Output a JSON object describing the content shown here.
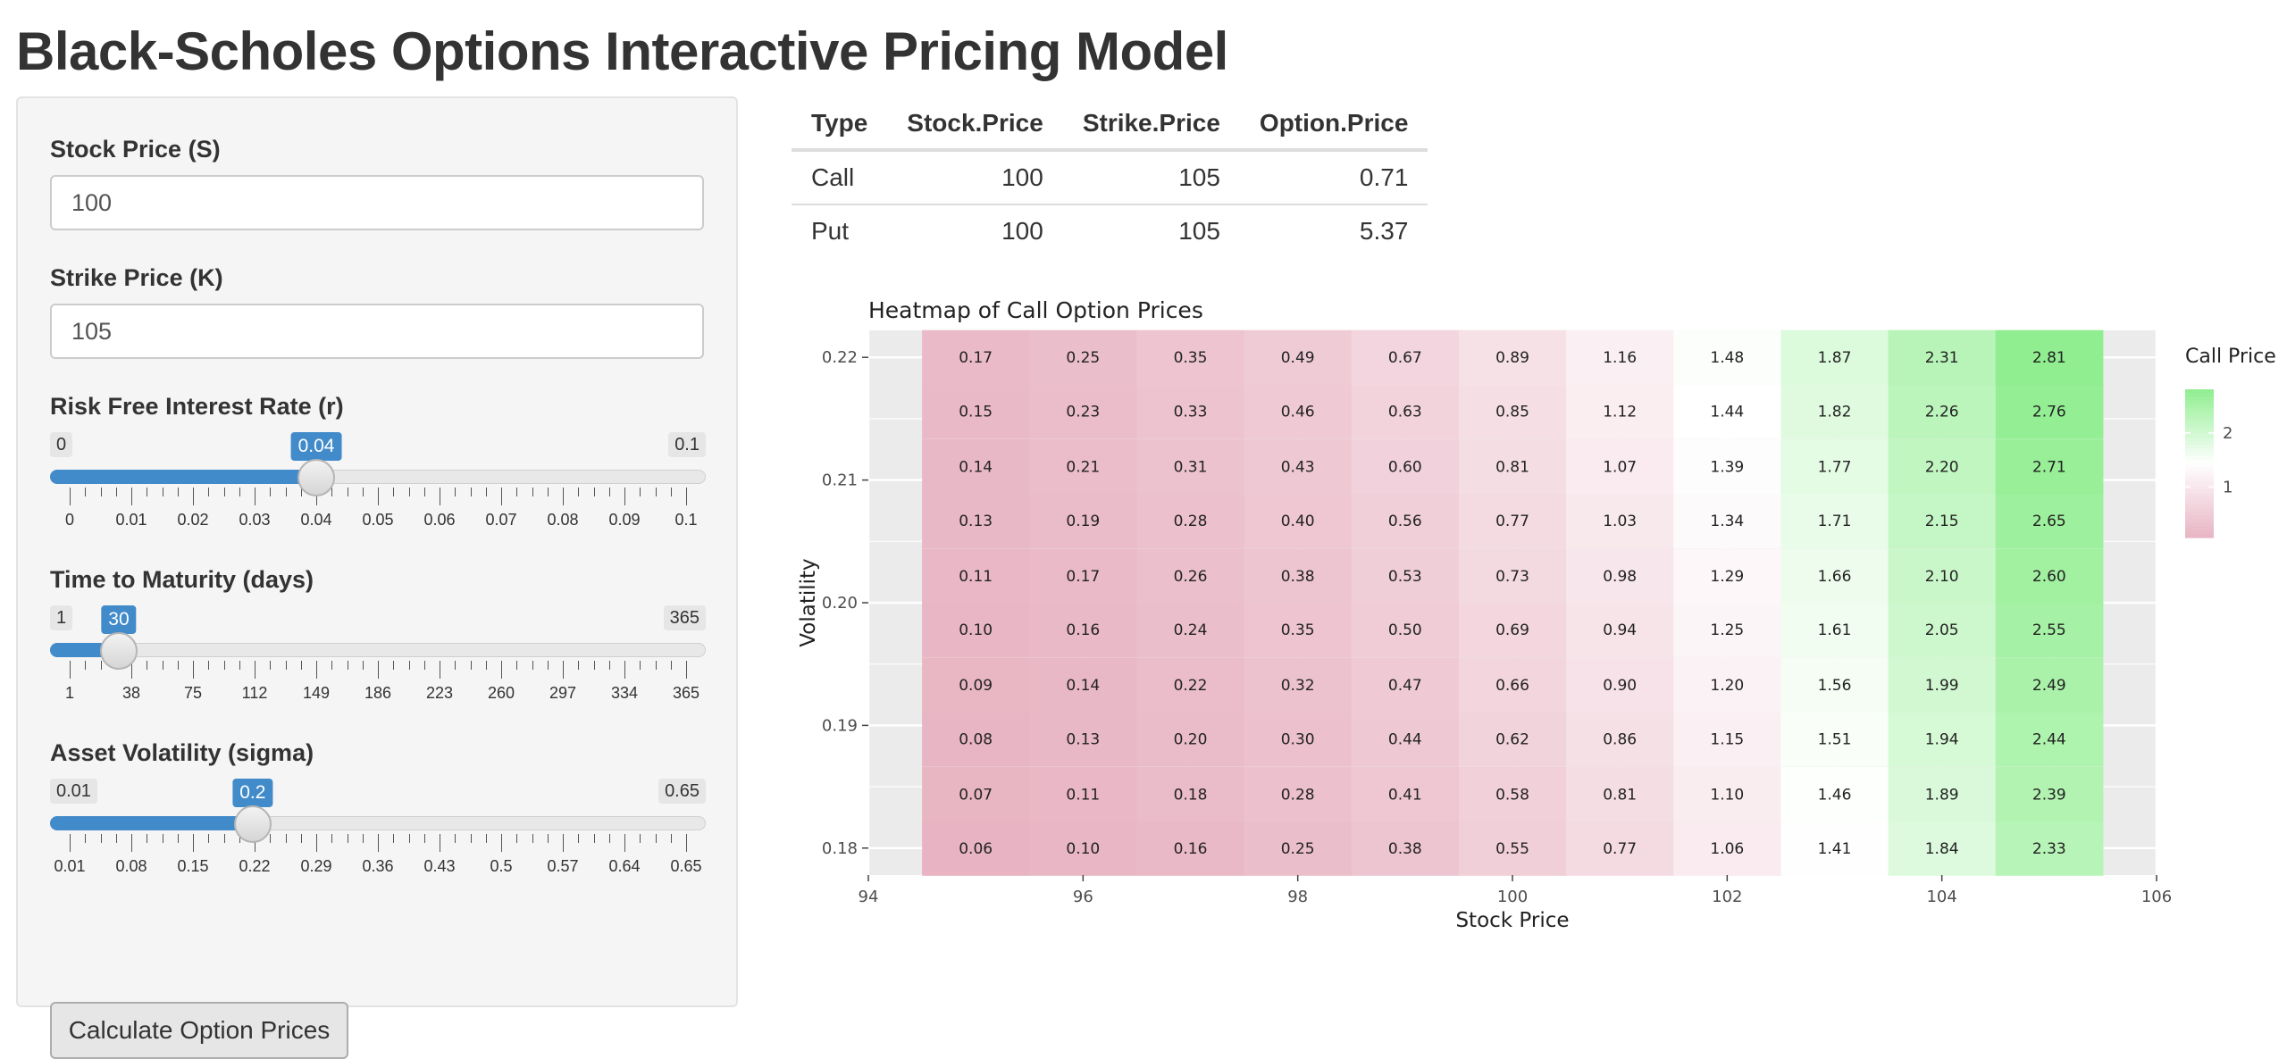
{
  "title": "Black-Scholes Options Interactive Pricing Model",
  "inputs": {
    "stock_price": {
      "label": "Stock Price (S)",
      "value": "100"
    },
    "strike_price": {
      "label": "Strike Price (K)",
      "value": "105"
    }
  },
  "sliders": {
    "rate": {
      "label": "Risk Free Interest Rate (r)",
      "min": "0",
      "max": "0.1",
      "value": "0.04",
      "fraction": 0.4,
      "ticks": [
        "0",
        "0.01",
        "0.02",
        "0.03",
        "0.04",
        "0.05",
        "0.06",
        "0.07",
        "0.08",
        "0.09",
        "0.1"
      ]
    },
    "time": {
      "label": "Time to Maturity (days)",
      "min": "1",
      "max": "365",
      "value": "30",
      "fraction": 0.0797,
      "ticks": [
        "1",
        "38",
        "75",
        "112",
        "149",
        "186",
        "223",
        "260",
        "297",
        "334",
        "365"
      ]
    },
    "sigma": {
      "label": "Asset Volatility (sigma)",
      "min": "0.01",
      "max": "0.65",
      "value": "0.2",
      "fraction": 0.2969,
      "ticks": [
        "0.01",
        "0.08",
        "0.15",
        "0.22",
        "0.29",
        "0.36",
        "0.43",
        "0.5",
        "0.57",
        "0.64",
        "0.65"
      ]
    }
  },
  "button": {
    "label": "Calculate Option Prices"
  },
  "table": {
    "headers": [
      "Type",
      "Stock.Price",
      "Strike.Price",
      "Option.Price"
    ],
    "rows": [
      {
        "type": "Call",
        "stock": "100",
        "strike": "105",
        "price": "0.71"
      },
      {
        "type": "Put",
        "stock": "100",
        "strike": "105",
        "price": "5.37"
      }
    ]
  },
  "chart_data": {
    "type": "heatmap",
    "title": "Heatmap of Call Option Prices",
    "xlabel": "Stock Price",
    "ylabel": "Volatility",
    "legend_title": "Call Price",
    "legend_ticks": [
      1,
      2
    ],
    "legend_position": "right",
    "xlim": [
      94,
      106
    ],
    "x_ticks": [
      94,
      96,
      98,
      100,
      102,
      104,
      106
    ],
    "y_ticks": [
      "0.18",
      "0.19",
      "0.20",
      "0.21",
      "0.22"
    ],
    "ylim": [
      0.1778,
      0.2222
    ],
    "x": [
      95,
      96,
      97,
      98,
      99,
      100,
      101,
      102,
      103,
      104,
      105
    ],
    "y": [
      0.18,
      0.1844,
      0.1889,
      0.1933,
      0.1978,
      0.2022,
      0.2067,
      0.2111,
      0.2156,
      0.22
    ],
    "values": [
      [
        "0.06",
        "0.10",
        "0.16",
        "0.25",
        "0.38",
        "0.55",
        "0.77",
        "1.06",
        "1.41",
        "1.84",
        "2.33"
      ],
      [
        "0.07",
        "0.11",
        "0.18",
        "0.28",
        "0.41",
        "0.58",
        "0.81",
        "1.10",
        "1.46",
        "1.89",
        "2.39"
      ],
      [
        "0.08",
        "0.13",
        "0.20",
        "0.30",
        "0.44",
        "0.62",
        "0.86",
        "1.15",
        "1.51",
        "1.94",
        "2.44"
      ],
      [
        "0.09",
        "0.14",
        "0.22",
        "0.32",
        "0.47",
        "0.66",
        "0.90",
        "1.20",
        "1.56",
        "1.99",
        "2.49"
      ],
      [
        "0.10",
        "0.16",
        "0.24",
        "0.35",
        "0.50",
        "0.69",
        "0.94",
        "1.25",
        "1.61",
        "2.05",
        "2.55"
      ],
      [
        "0.11",
        "0.17",
        "0.26",
        "0.38",
        "0.53",
        "0.73",
        "0.98",
        "1.29",
        "1.66",
        "2.10",
        "2.60"
      ],
      [
        "0.13",
        "0.19",
        "0.28",
        "0.40",
        "0.56",
        "0.77",
        "1.03",
        "1.34",
        "1.71",
        "2.15",
        "2.65"
      ],
      [
        "0.14",
        "0.21",
        "0.31",
        "0.43",
        "0.60",
        "0.81",
        "1.07",
        "1.39",
        "1.77",
        "2.20",
        "2.71"
      ],
      [
        "0.15",
        "0.23",
        "0.33",
        "0.46",
        "0.63",
        "0.85",
        "1.12",
        "1.44",
        "1.82",
        "2.26",
        "2.76"
      ],
      [
        "0.17",
        "0.25",
        "0.35",
        "0.49",
        "0.67",
        "0.89",
        "1.16",
        "1.48",
        "1.87",
        "2.31",
        "2.81"
      ]
    ],
    "colors": {
      "low": "#e8b4c3",
      "mid": "#ffffff",
      "high": "#90ee90",
      "panel": "#ebebeb",
      "grid": "#ffffff"
    },
    "grid": true
  }
}
